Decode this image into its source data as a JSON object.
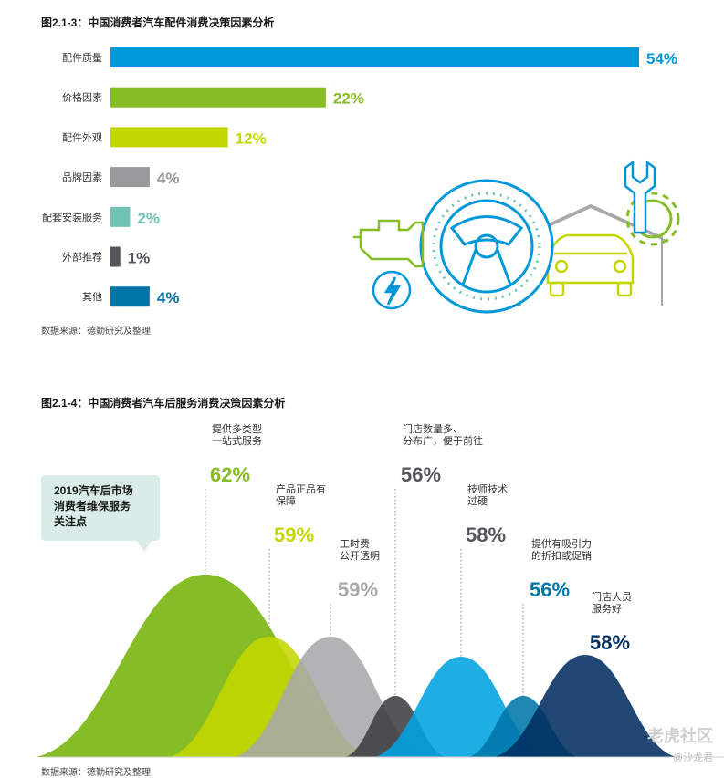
{
  "figure1": {
    "title": "图2.1-3：中国消费者汽车配件消费决策因素分析",
    "source": "数据来源：德勤研究及整理"
  },
  "figure2": {
    "title": "图2.1-4：中国消费者汽车后服务消费决策因素分析",
    "callout": "2019汽车后市场\n消费者维保服务\n关注点",
    "source": "数据来源：德勤研究及整理"
  },
  "watermark": {
    "brand": "老虎社区",
    "author": "@沙龙君"
  },
  "colors": {
    "blue": "#0098d8",
    "green": "#86bc25",
    "lime": "#c4d600",
    "gray": "#97999b",
    "teal": "#6fc2b4",
    "dark": "#53565a",
    "navy": "#0076a8",
    "deepnavy": "#012169"
  },
  "chart_data": [
    {
      "type": "bar",
      "orientation": "horizontal",
      "categories": [
        "配件质量",
        "价格因素",
        "配件外观",
        "品牌因素",
        "配套安装服务",
        "外部推荐",
        "其他"
      ],
      "values": [
        54,
        22,
        12,
        4,
        2,
        1,
        4
      ],
      "value_labels": [
        "54%",
        "22%",
        "12%",
        "4%",
        "2%",
        "1%",
        "4%"
      ],
      "bar_colors": [
        "#0098d8",
        "#86bc25",
        "#c4d600",
        "#97999b",
        "#6fc2b4",
        "#53565a",
        "#0076a8"
      ],
      "xlim": [
        0,
        54
      ]
    },
    {
      "type": "area",
      "subtype": "peaks",
      "categories": [
        {
          "label": [
            "提供多类型",
            "一站式服务"
          ],
          "value": 62,
          "value_label": "62%",
          "color": "#86bc25",
          "label_color": "#86bc25"
        },
        {
          "label": [
            "产品正品有",
            "保障"
          ],
          "value": 59,
          "value_label": "59%",
          "color": "#c4d600",
          "label_color": "#c4d600"
        },
        {
          "label": [
            "工时费",
            "公开透明"
          ],
          "value": 59,
          "value_label": "59%",
          "color": "#a7a8aa",
          "label_color": "#a7a8aa"
        },
        {
          "label": [
            "门店数量多、",
            "分布广，便于前往"
          ],
          "value": 56,
          "value_label": "56%",
          "color": "#3d3f42",
          "label_color": "#53565a"
        },
        {
          "label": [
            "技师技术",
            "过硬"
          ],
          "value": 58,
          "value_label": "58%",
          "color": "#00a3e0",
          "label_color": "#53565a"
        },
        {
          "label": [
            "提供有吸引力",
            "的折扣或促销"
          ],
          "value": 56,
          "value_label": "56%",
          "color": "#0076a8",
          "label_color": "#0076a8"
        },
        {
          "label": [
            "门店人员",
            "服务好"
          ],
          "value": 58,
          "value_label": "58%",
          "color": "#012f5f",
          "label_color": "#012f5f"
        }
      ]
    }
  ]
}
